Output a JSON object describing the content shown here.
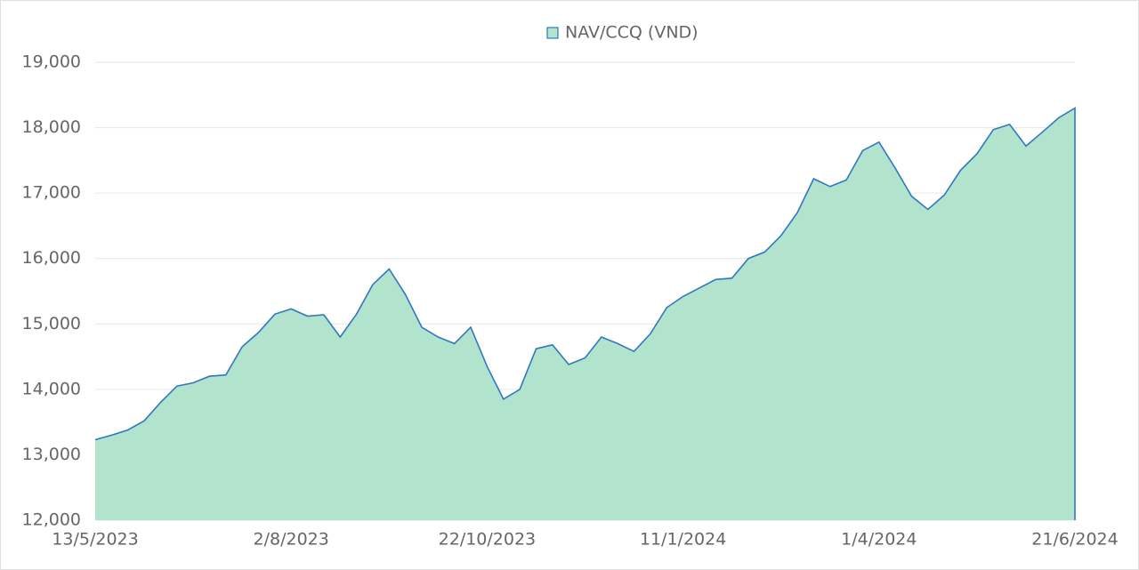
{
  "chart_data": {
    "type": "area",
    "categories": [
      "13/5/2023",
      null,
      null,
      null,
      null,
      null,
      null,
      null,
      null,
      null,
      null,
      null,
      "2/8/2023",
      null,
      null,
      null,
      null,
      null,
      null,
      null,
      null,
      null,
      null,
      null,
      "22/10/2023",
      null,
      null,
      null,
      null,
      null,
      null,
      null,
      null,
      null,
      null,
      null,
      "11/1/2024",
      null,
      null,
      null,
      null,
      null,
      null,
      null,
      null,
      null,
      null,
      null,
      "1/4/2024",
      null,
      null,
      null,
      null,
      null,
      null,
      null,
      null,
      null,
      null,
      null,
      "21/6/2024"
    ],
    "series": [
      {
        "name": "NAV/CCQ (VND)",
        "color": "#b2e3cc",
        "line_color": "#2f78c2",
        "values": [
          13230,
          13300,
          13380,
          13520,
          13800,
          14050,
          14100,
          14200,
          14220,
          14650,
          14870,
          15150,
          15230,
          15120,
          15140,
          14800,
          15150,
          15600,
          15840,
          15450,
          14950,
          14800,
          14700,
          14950,
          14350,
          13850,
          14000,
          14620,
          14680,
          14380,
          14480,
          14800,
          14700,
          14580,
          14850,
          15250,
          15420,
          15550,
          15680,
          15700,
          16000,
          16100,
          16350,
          16700,
          17220,
          17100,
          17200,
          17650,
          17780,
          17380,
          16950,
          16750,
          16970,
          17350,
          17600,
          17970,
          18050,
          17720,
          17930,
          18150,
          18300
        ]
      }
    ],
    "ylim": [
      12000,
      19000
    ],
    "yticks": [
      {
        "value": 12000,
        "label": "12,000"
      },
      {
        "value": 13000,
        "label": "13,000"
      },
      {
        "value": 14000,
        "label": "14,000"
      },
      {
        "value": 15000,
        "label": "15,000"
      },
      {
        "value": 16000,
        "label": "16,000"
      },
      {
        "value": 17000,
        "label": "17,000"
      },
      {
        "value": 18000,
        "label": "18,000"
      },
      {
        "value": 19000,
        "label": "19,000"
      }
    ],
    "grid": true,
    "legend": "top"
  }
}
